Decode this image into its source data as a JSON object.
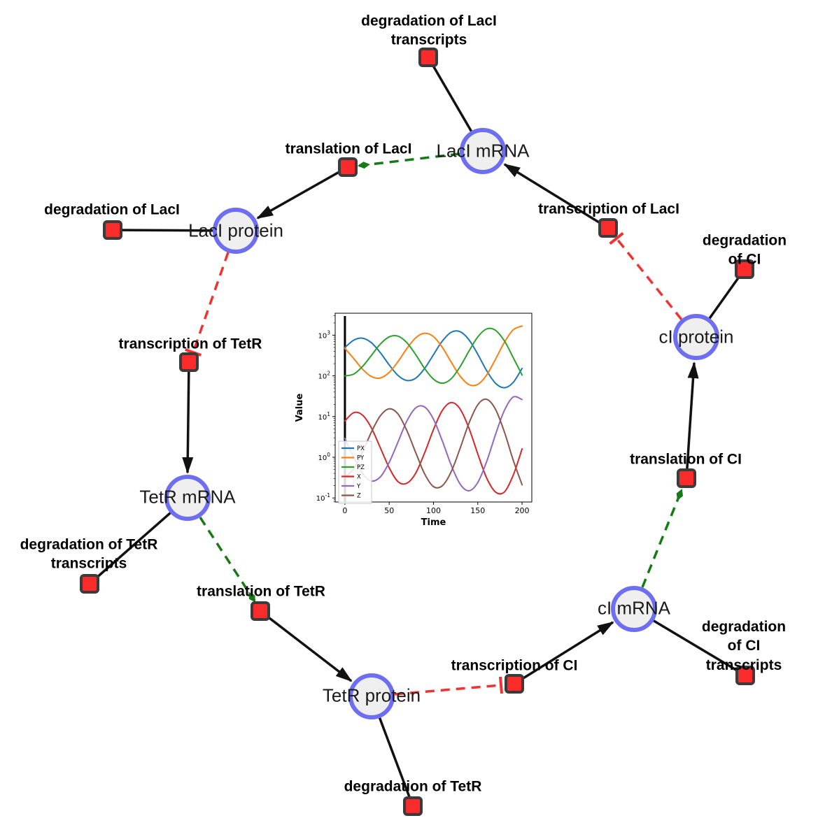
{
  "diagram": {
    "species": [
      {
        "label": "LacI mRNA"
      },
      {
        "label": "LacI protein"
      },
      {
        "label": "cI protein"
      },
      {
        "label": "TetR mRNA"
      },
      {
        "label": "cI mRNA"
      },
      {
        "label": "TetR protein"
      }
    ],
    "reactions": [
      {
        "label": "degradation of LacI\ntranscripts"
      },
      {
        "label": "translation of LacI"
      },
      {
        "label": "transcription of LacI"
      },
      {
        "label": "degradation of LacI"
      },
      {
        "label": "degradation of CI"
      },
      {
        "label": "transcription of TetR"
      },
      {
        "label": "translation of CI"
      },
      {
        "label": "degradation of TetR\ntranscripts"
      },
      {
        "label": "translation of TetR"
      },
      {
        "label": "degradation of CI\ntranscripts"
      },
      {
        "label": "transcription of CI"
      },
      {
        "label": "degradation of TetR"
      }
    ]
  },
  "colors": {
    "species-border": "#6e6ef2",
    "species-fill": "#efefef",
    "reaction-fill": "#fa2b2b",
    "reaction-border": "#3b3b3b",
    "edge-black": "#111111",
    "modifier-green": "#167a16",
    "inhibition-red": "#f23131"
  },
  "chart_data": {
    "type": "line",
    "title": "",
    "xlabel": "Time",
    "ylabel": "Value",
    "y_scale": "log",
    "grid": false,
    "legend_position": "lower left",
    "x_ticks": [
      0,
      50,
      100,
      150,
      200
    ],
    "y_tick_exponents": [
      -1,
      0,
      1,
      2,
      3
    ],
    "xlim": [
      -11,
      211
    ],
    "ylim_log10": [
      -1.1,
      3.54
    ],
    "vline_x": 0,
    "x": [
      0,
      10,
      20,
      30,
      40,
      50,
      60,
      70,
      80,
      90,
      100,
      110,
      120,
      130,
      140,
      150,
      160,
      170,
      180,
      190,
      200
    ],
    "series": [
      {
        "name": "PX",
        "color": "#1f77b4",
        "values": [
          498,
          755,
          843,
          650,
          371,
          186,
          102,
          77,
          88,
          152,
          332,
          718,
          1178,
          1222,
          773,
          340,
          135,
          66,
          51,
          69,
          153
        ]
      },
      {
        "name": "PY",
        "color": "#ff7f0e",
        "values": [
          473,
          265,
          145,
          96,
          89,
          122,
          226,
          471,
          865,
          1119,
          921,
          500,
          218,
          99,
          61,
          62,
          105,
          256,
          666,
          1355,
          1678
        ]
      },
      {
        "name": "PZ",
        "color": "#2ca02c",
        "values": [
          100,
          111,
          171,
          322,
          605,
          912,
          946,
          652,
          330,
          152,
          83,
          66,
          85,
          168,
          405,
          906,
          1423,
          1321,
          726,
          282,
          105
        ]
      },
      {
        "name": "X",
        "color": "#d62728",
        "values": [
          7.8,
          12.5,
          10.8,
          5.2,
          1.7,
          0.55,
          0.25,
          0.23,
          0.41,
          1.28,
          4.8,
          14.2,
          22.1,
          15.4,
          5.2,
          1.21,
          0.31,
          0.14,
          0.14,
          0.36,
          1.61
        ]
      },
      {
        "name": "Y",
        "color": "#9467bd",
        "values": [
          2.9,
          1.0,
          0.4,
          0.26,
          0.33,
          0.75,
          2.4,
          7.8,
          16.4,
          17.2,
          8.6,
          2.5,
          0.64,
          0.22,
          0.15,
          0.24,
          0.78,
          3.6,
          14.1,
          30.2,
          26.2
        ]
      },
      {
        "name": "Z",
        "color": "#8c564b",
        "values": [
          0.32,
          0.52,
          1.36,
          4.2,
          10.5,
          15.5,
          11.5,
          4.5,
          1.29,
          0.39,
          0.19,
          0.2,
          0.44,
          1.65,
          6.8,
          19.5,
          26.6,
          15.1,
          4.2,
          0.85,
          0.21
        ]
      }
    ]
  }
}
